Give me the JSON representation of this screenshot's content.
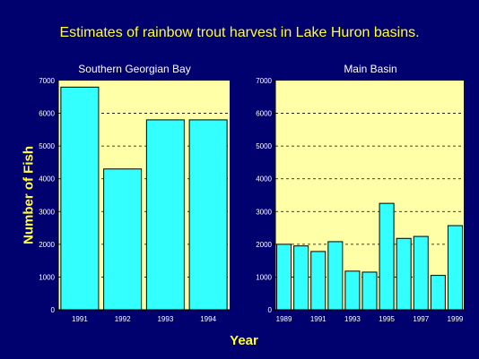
{
  "title": "Estimates of rainbow trout harvest in Lake Huron basins.",
  "ylabel": "Number of Fish",
  "xlabel": "Year",
  "colors": {
    "background": "#00006e",
    "plot_area": "#ffffa8",
    "bar": "#33ffff",
    "text_accent": "#ffff33"
  },
  "chart_data": [
    {
      "type": "bar",
      "title": "Southern Georgian Bay",
      "categories": [
        "1991",
        "1992",
        "1993",
        "1994"
      ],
      "tick_labels": [
        "1991",
        "1992",
        "1993",
        "1994"
      ],
      "values": [
        6800,
        4300,
        5800,
        5800
      ],
      "ylim": [
        0,
        7000
      ],
      "yticks": [
        0,
        1000,
        2000,
        3000,
        4000,
        5000,
        6000,
        7000
      ],
      "grid": true
    },
    {
      "type": "bar",
      "title": "Main Basin",
      "categories": [
        "1989",
        "1990",
        "1991",
        "1992",
        "1993",
        "1994",
        "1995",
        "1996",
        "1997",
        "1998",
        "1999"
      ],
      "tick_labels": [
        "1989",
        "",
        "1991",
        "",
        "1993",
        "",
        "1995",
        "",
        "1997",
        "",
        "1999"
      ],
      "values": [
        2000,
        1950,
        1780,
        2080,
        1180,
        1150,
        3250,
        2180,
        2240,
        1050,
        2570
      ],
      "ylim": [
        0,
        7000
      ],
      "yticks": [
        0,
        1000,
        2000,
        3000,
        4000,
        5000,
        6000,
        7000
      ],
      "grid": true
    }
  ]
}
